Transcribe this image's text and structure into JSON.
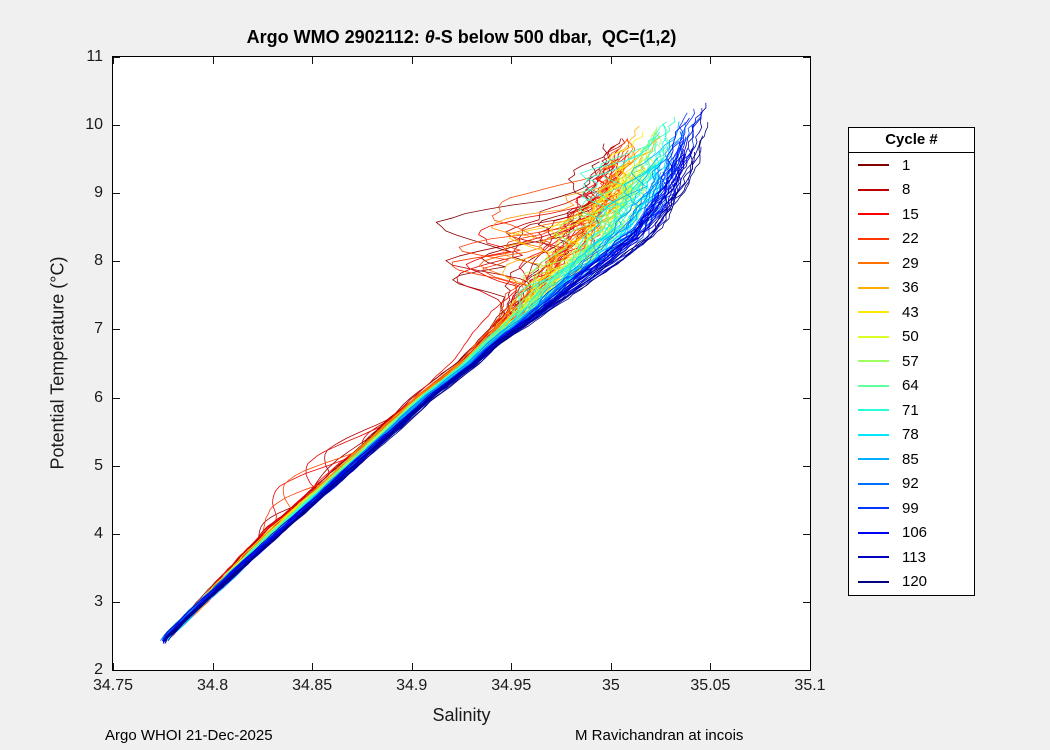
{
  "window": {
    "background": "#f0f0f0"
  },
  "title_parts": {
    "prefix": "Argo WMO 2902112: ",
    "theta": "θ",
    "suffix": "-S below 500 dbar,  QC=(1,2)"
  },
  "footer": {
    "left": "Argo WHOI 21-Dec-2025",
    "right": "M Ravichandran at incois"
  },
  "chart_data": {
    "type": "line",
    "title": "Argo WMO 2902112: θ-S below 500 dbar,  QC=(1,2)",
    "xlabel": "Salinity",
    "ylabel": "Potential Temperature (°C)",
    "xlim": [
      34.75,
      35.1
    ],
    "ylim": [
      2,
      11
    ],
    "xtick_values": [
      34.75,
      34.8,
      34.85,
      34.9,
      34.95,
      35,
      35.05,
      35.1
    ],
    "xtick_labels": [
      "34.75",
      "34.8",
      "34.85",
      "34.9",
      "34.95",
      "35",
      "35.05",
      "35.1"
    ],
    "ytick_values": [
      2,
      3,
      4,
      5,
      6,
      7,
      8,
      9,
      10,
      11
    ],
    "ytick_labels": [
      "2",
      "3",
      "4",
      "5",
      "6",
      "7",
      "8",
      "9",
      "10",
      "11"
    ],
    "grid": false,
    "n_profiles": 120,
    "cycle_range": [
      1,
      120
    ],
    "colormap": "reversed-jet (cycle 1 = dark red, cycle 120 = navy)",
    "description": "θ-S spaghetti profiles for Argo float WMO 2902112, cycles 1-120. Profiles collapse onto a tight θ-S line below ~7 °C running from (34.776, 2.5) to (34.95, 7), then fan out into a noisy cloud between ~7.5 and ~10 °C spanning 34.92-35.07 in salinity; early (red) cycles wander fresher, late (blue) cycles cluster saltier near 35.0-35.05.",
    "mean_ts_curve": {
      "theta": [
        2.45,
        3.0,
        3.5,
        4.0,
        4.5,
        5.0,
        5.5,
        6.0,
        6.5,
        7.0,
        7.5,
        8.0,
        8.5,
        9.0,
        9.5,
        10.0
      ],
      "salinity": [
        34.776,
        34.795,
        34.812,
        34.83,
        34.849,
        34.868,
        34.887,
        34.906,
        34.928,
        34.946,
        34.962,
        34.978,
        34.992,
        35.003,
        35.01,
        35.016
      ]
    },
    "legend": {
      "title": "Cycle #",
      "position": "outside-right",
      "entries": [
        {
          "label": "1",
          "color": "#800000"
        },
        {
          "label": "8",
          "color": "#bc0000"
        },
        {
          "label": "15",
          "color": "#f80000"
        },
        {
          "label": "22",
          "color": "#ff3500"
        },
        {
          "label": "29",
          "color": "#ff7100"
        },
        {
          "label": "36",
          "color": "#ffad00"
        },
        {
          "label": "43",
          "color": "#ffe800"
        },
        {
          "label": "50",
          "color": "#daff26"
        },
        {
          "label": "57",
          "color": "#9eff62"
        },
        {
          "label": "64",
          "color": "#62ff9e"
        },
        {
          "label": "71",
          "color": "#26ffda"
        },
        {
          "label": "78",
          "color": "#00e8ff"
        },
        {
          "label": "85",
          "color": "#00adff"
        },
        {
          "label": "92",
          "color": "#0071ff"
        },
        {
          "label": "99",
          "color": "#0035ff"
        },
        {
          "label": "106",
          "color": "#0000f8"
        },
        {
          "label": "113",
          "color": "#0000bc"
        },
        {
          "label": "120",
          "color": "#000080"
        }
      ]
    }
  }
}
